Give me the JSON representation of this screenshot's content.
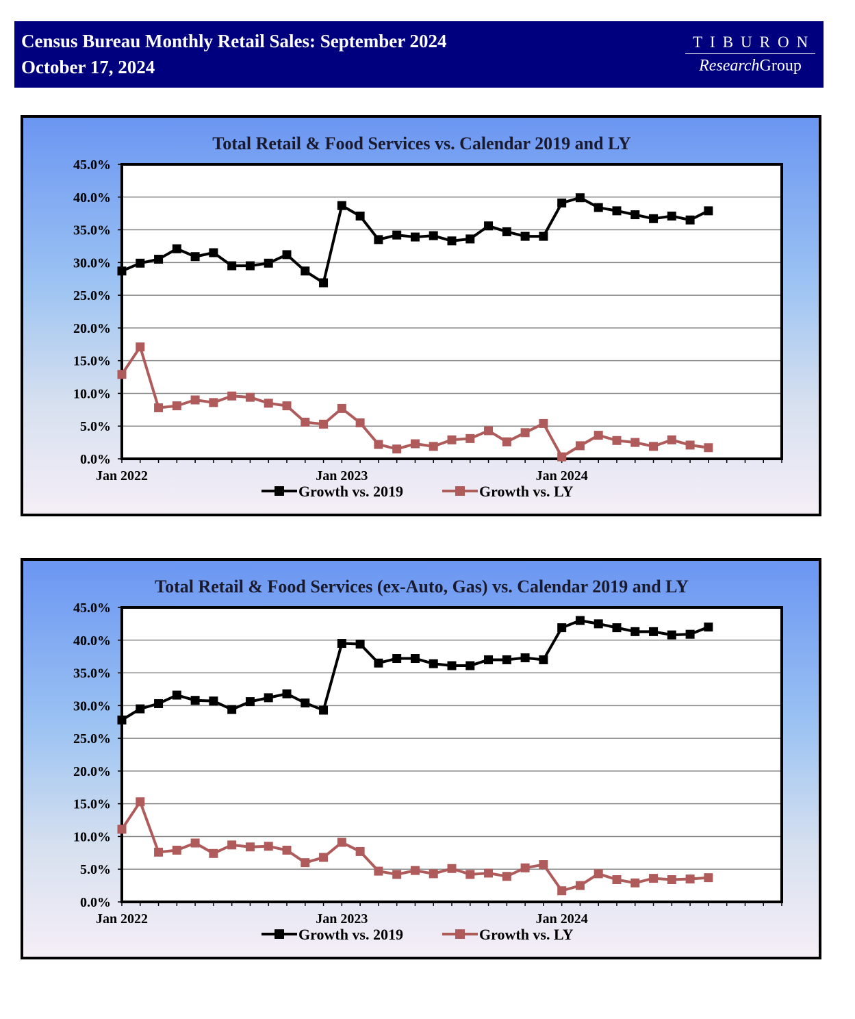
{
  "header": {
    "title": "Census Bureau Monthly Retail Sales:  September 2024",
    "date": "October 17, 2024",
    "logo_top": "TIBURON",
    "logo_bottom_italic": "Research",
    "logo_bottom_regular": "Group",
    "background_color": "#00007f"
  },
  "chart_data": [
    {
      "type": "line",
      "title": "Total Retail & Food Services vs. Calendar 2019 and LY",
      "ylim": [
        0,
        45
      ],
      "yticks": [
        "0.0%",
        "5.0%",
        "10.0%",
        "15.0%",
        "20.0%",
        "25.0%",
        "30.0%",
        "35.0%",
        "40.0%",
        "45.0%"
      ],
      "xtick_labels": [
        {
          "label": "Jan 2022",
          "index": 0
        },
        {
          "label": "Jan 2023",
          "index": 12
        },
        {
          "label": "Jan 2024",
          "index": 24
        }
      ],
      "x_count": 36,
      "grid": true,
      "legend": "bottom",
      "series": [
        {
          "name": "Growth vs. 2019",
          "color": "#000000",
          "values": [
            28.7,
            29.9,
            30.5,
            32.1,
            30.9,
            31.5,
            29.5,
            29.5,
            29.9,
            31.2,
            28.7,
            26.9,
            38.7,
            37.1,
            33.5,
            34.2,
            33.9,
            34.1,
            33.3,
            33.6,
            35.6,
            34.7,
            34.0,
            34.0,
            39.1,
            39.9,
            38.4,
            37.9,
            37.3,
            36.7,
            37.1,
            36.5,
            37.9
          ]
        },
        {
          "name": "Growth vs. LY",
          "color": "#b05b5b",
          "values": [
            12.9,
            17.1,
            7.8,
            8.1,
            9.0,
            8.6,
            9.6,
            9.4,
            8.5,
            8.1,
            5.6,
            5.3,
            7.7,
            5.5,
            2.2,
            1.5,
            2.3,
            1.9,
            2.9,
            3.1,
            4.3,
            2.6,
            4.0,
            5.4,
            0.3,
            2.0,
            3.6,
            2.8,
            2.5,
            1.9,
            2.9,
            2.1,
            1.7
          ]
        }
      ]
    },
    {
      "type": "line",
      "title": "Total Retail & Food Services (ex-Auto, Gas) vs. Calendar 2019 and LY",
      "ylim": [
        0,
        45
      ],
      "yticks": [
        "0.0%",
        "5.0%",
        "10.0%",
        "15.0%",
        "20.0%",
        "25.0%",
        "30.0%",
        "35.0%",
        "40.0%",
        "45.0%"
      ],
      "xtick_labels": [
        {
          "label": "Jan 2022",
          "index": 0
        },
        {
          "label": "Jan 2023",
          "index": 12
        },
        {
          "label": "Jan 2024",
          "index": 24
        }
      ],
      "x_count": 36,
      "grid": true,
      "legend": "bottom",
      "series": [
        {
          "name": "Growth vs. 2019",
          "color": "#000000",
          "values": [
            27.8,
            29.5,
            30.3,
            31.6,
            30.8,
            30.7,
            29.4,
            30.6,
            31.2,
            31.8,
            30.4,
            29.3,
            39.5,
            39.4,
            36.5,
            37.2,
            37.2,
            36.4,
            36.1,
            36.1,
            37.0,
            37.0,
            37.3,
            37.0,
            41.9,
            43.0,
            42.5,
            41.9,
            41.3,
            41.3,
            40.8,
            40.9,
            42.0
          ]
        },
        {
          "name": "Growth vs. LY",
          "color": "#b05b5b",
          "values": [
            11.1,
            15.3,
            7.6,
            7.9,
            9.0,
            7.4,
            8.7,
            8.4,
            8.5,
            7.9,
            6.0,
            6.8,
            9.1,
            7.7,
            4.7,
            4.2,
            4.8,
            4.3,
            5.1,
            4.2,
            4.4,
            3.9,
            5.2,
            5.7,
            1.7,
            2.5,
            4.3,
            3.4,
            2.9,
            3.6,
            3.4,
            3.5,
            3.7
          ]
        }
      ]
    }
  ]
}
